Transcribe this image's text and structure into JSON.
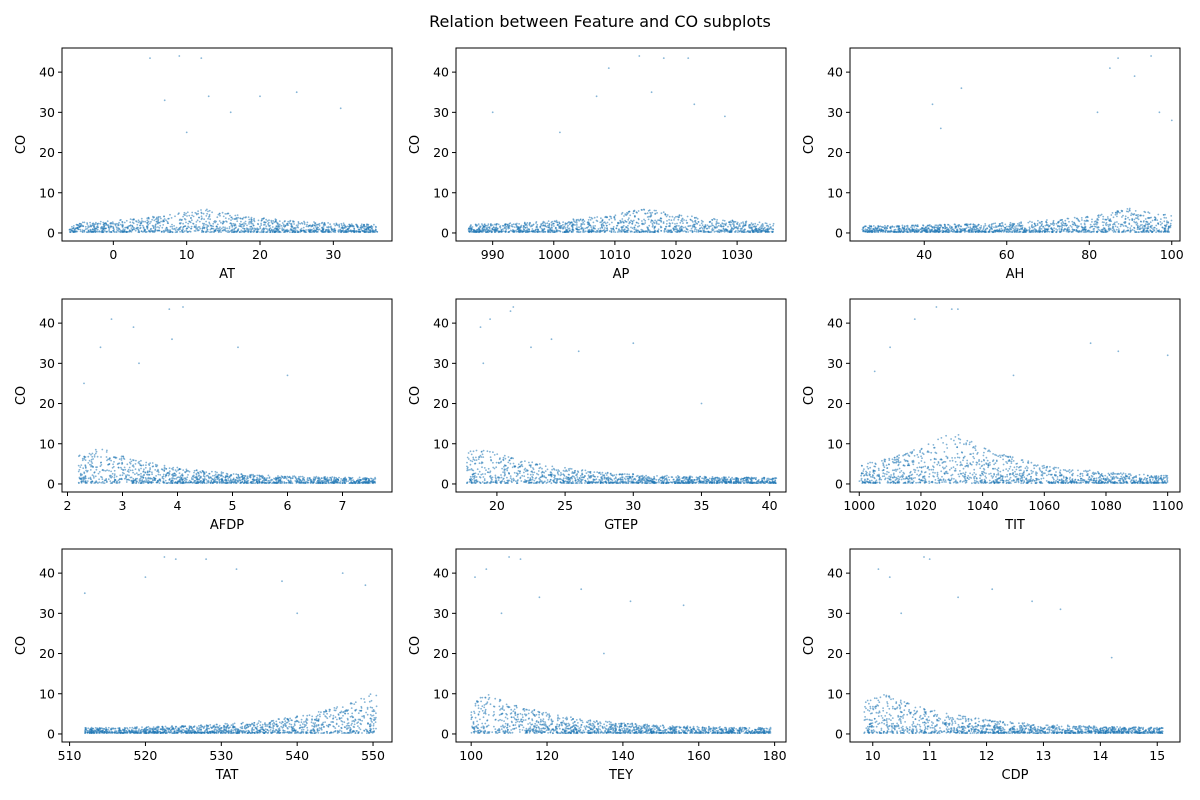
{
  "figure": {
    "title": "Relation between Feature and CO subplots",
    "point_color": "#1f77b4"
  },
  "chart_data": [
    {
      "type": "scatter",
      "xlabel": "AT",
      "ylabel": "CO",
      "xlim": [
        -7,
        38
      ],
      "ylim": [
        -2,
        46
      ],
      "xticks": [
        0,
        10,
        20,
        30
      ],
      "yticks": [
        0,
        10,
        20,
        30,
        40
      ],
      "shape": {
        "x_min": -6,
        "x_max": 36,
        "x_peak": 12,
        "y_peak": 6,
        "y_base": 1.5,
        "outliers": [
          [
            5,
            43.5
          ],
          [
            9,
            44
          ],
          [
            12,
            43.5
          ],
          [
            16,
            30
          ],
          [
            13,
            34
          ],
          [
            25,
            35
          ],
          [
            31,
            31
          ],
          [
            7,
            33
          ],
          [
            10,
            25
          ],
          [
            20,
            34
          ]
        ]
      }
    },
    {
      "type": "scatter",
      "xlabel": "AP",
      "ylabel": "CO",
      "xlim": [
        984,
        1038
      ],
      "ylim": [
        -2,
        46
      ],
      "xticks": [
        990,
        1000,
        1010,
        1020,
        1030
      ],
      "yticks": [
        0,
        10,
        20,
        30,
        40
      ],
      "shape": {
        "x_min": 986,
        "x_max": 1036,
        "x_peak": 1015,
        "y_peak": 6,
        "y_base": 1.5,
        "outliers": [
          [
            1014,
            44
          ],
          [
            1018,
            43.5
          ],
          [
            1009,
            41
          ],
          [
            1022,
            43.5
          ],
          [
            990,
            30
          ],
          [
            1007,
            34
          ],
          [
            1016,
            35
          ],
          [
            1023,
            32
          ],
          [
            1001,
            25
          ],
          [
            1028,
            29
          ]
        ]
      }
    },
    {
      "type": "scatter",
      "xlabel": "AH",
      "ylabel": "CO",
      "xlim": [
        22,
        102
      ],
      "ylim": [
        -2,
        46
      ],
      "xticks": [
        40,
        60,
        80,
        100
      ],
      "yticks": [
        0,
        10,
        20,
        30,
        40
      ],
      "shape": {
        "x_min": 25,
        "x_max": 100,
        "x_peak": 90,
        "y_peak": 6,
        "y_base": 1.5,
        "outliers": [
          [
            87,
            43.5
          ],
          [
            95,
            44
          ],
          [
            85,
            41
          ],
          [
            91,
            39
          ],
          [
            42,
            32
          ],
          [
            49,
            36
          ],
          [
            82,
            30
          ],
          [
            97,
            30
          ],
          [
            100,
            28
          ],
          [
            44,
            26
          ]
        ]
      }
    },
    {
      "type": "scatter",
      "xlabel": "AFDP",
      "ylabel": "CO",
      "xlim": [
        1.9,
        7.9
      ],
      "ylim": [
        -2,
        46
      ],
      "xticks": [
        2,
        3,
        4,
        5,
        6,
        7
      ],
      "yticks": [
        0,
        10,
        20,
        30,
        40
      ],
      "shape": {
        "x_min": 2.2,
        "x_max": 7.6,
        "x_peak": 2.6,
        "y_peak": 9,
        "y_base": 1.2,
        "outliers": [
          [
            3.85,
            43.5
          ],
          [
            4.1,
            44
          ],
          [
            2.8,
            41
          ],
          [
            3.2,
            39
          ],
          [
            2.6,
            34
          ],
          [
            3.9,
            36
          ],
          [
            5.1,
            34
          ],
          [
            6,
            27
          ],
          [
            2.3,
            25
          ],
          [
            3.3,
            30
          ]
        ]
      }
    },
    {
      "type": "scatter",
      "xlabel": "GTEP",
      "ylabel": "CO",
      "xlim": [
        17,
        41.2
      ],
      "ylim": [
        -2,
        46
      ],
      "xticks": [
        20,
        25,
        30,
        35,
        40
      ],
      "yticks": [
        0,
        10,
        20,
        30,
        40
      ],
      "shape": {
        "x_min": 17.8,
        "x_max": 40.5,
        "x_peak": 18.8,
        "y_peak": 9,
        "y_base": 1.2,
        "outliers": [
          [
            21.2,
            44
          ],
          [
            21,
            43
          ],
          [
            18.8,
            39
          ],
          [
            19.5,
            41
          ],
          [
            24,
            36
          ],
          [
            22.5,
            34
          ],
          [
            30,
            35
          ],
          [
            26,
            33
          ],
          [
            35,
            20
          ],
          [
            19,
            30
          ]
        ]
      }
    },
    {
      "type": "scatter",
      "xlabel": "TIT",
      "ylabel": "CO",
      "xlim": [
        997,
        1104
      ],
      "ylim": [
        -2,
        46
      ],
      "xticks": [
        1000,
        1020,
        1040,
        1060,
        1080,
        1100
      ],
      "yticks": [
        0,
        10,
        20,
        30,
        40
      ],
      "shape": {
        "x_min": 1000,
        "x_max": 1100,
        "x_peak": 1030,
        "y_peak": 13,
        "y_base": 1.2,
        "outliers": [
          [
            1025,
            44
          ],
          [
            1018,
            41
          ],
          [
            1032,
            43.5
          ],
          [
            1030,
            43.5
          ],
          [
            1010,
            34
          ],
          [
            1005,
            28
          ],
          [
            1050,
            27
          ],
          [
            1075,
            35
          ],
          [
            1100,
            32
          ],
          [
            1084,
            33
          ]
        ]
      }
    },
    {
      "type": "scatter",
      "xlabel": "TAT",
      "ylabel": "CO",
      "xlim": [
        509,
        552.5
      ],
      "ylim": [
        -2,
        46
      ],
      "xticks": [
        510,
        520,
        530,
        540,
        550
      ],
      "yticks": [
        0,
        10,
        20,
        30,
        40
      ],
      "shape": {
        "x_min": 512,
        "x_max": 550.5,
        "x_peak": 550,
        "y_peak": 10,
        "y_base": 1.2,
        "outliers": [
          [
            522.5,
            44
          ],
          [
            524,
            43.5
          ],
          [
            528,
            43.5
          ],
          [
            532,
            41
          ],
          [
            512,
            35
          ],
          [
            520,
            39
          ],
          [
            538,
            38
          ],
          [
            546,
            40
          ],
          [
            549,
            37
          ],
          [
            540,
            30
          ]
        ]
      }
    },
    {
      "type": "scatter",
      "xlabel": "TEY",
      "ylabel": "CO",
      "xlim": [
        96,
        183
      ],
      "ylim": [
        -2,
        46
      ],
      "xticks": [
        100,
        120,
        140,
        160,
        180
      ],
      "yticks": [
        0,
        10,
        20,
        30,
        40
      ],
      "shape": {
        "x_min": 100,
        "x_max": 179,
        "x_peak": 104,
        "y_peak": 10,
        "y_base": 1.2,
        "outliers": [
          [
            110,
            44
          ],
          [
            113,
            43.5
          ],
          [
            101,
            39
          ],
          [
            104,
            41
          ],
          [
            118,
            34
          ],
          [
            129,
            36
          ],
          [
            142,
            33
          ],
          [
            156,
            32
          ],
          [
            135,
            20
          ],
          [
            108,
            30
          ]
        ]
      }
    },
    {
      "type": "scatter",
      "xlabel": "CDP",
      "ylabel": "CO",
      "xlim": [
        9.6,
        15.4
      ],
      "ylim": [
        -2,
        46
      ],
      "xticks": [
        10,
        11,
        12,
        13,
        14,
        15
      ],
      "yticks": [
        0,
        10,
        20,
        30,
        40
      ],
      "shape": {
        "x_min": 9.85,
        "x_max": 15.1,
        "x_peak": 10.2,
        "y_peak": 10,
        "y_base": 1.2,
        "outliers": [
          [
            10.9,
            44
          ],
          [
            11,
            43.5
          ],
          [
            10.1,
            41
          ],
          [
            10.3,
            39
          ],
          [
            11.5,
            34
          ],
          [
            12.1,
            36
          ],
          [
            12.8,
            33
          ],
          [
            13.3,
            31
          ],
          [
            14.2,
            19
          ],
          [
            10.5,
            30
          ]
        ]
      }
    }
  ]
}
